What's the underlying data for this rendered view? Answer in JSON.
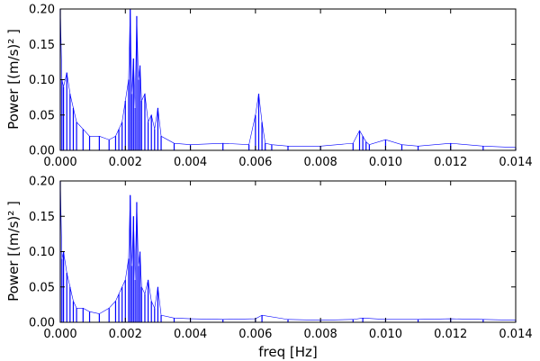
{
  "chart_data": [
    {
      "type": "line",
      "xlabel": "",
      "ylabel": "Power [(m/s)² ]",
      "xlim": [
        0.0,
        0.014
      ],
      "ylim": [
        0.0,
        0.2
      ],
      "xticks": [
        "0.000",
        "0.002",
        "0.004",
        "0.006",
        "0.008",
        "0.010",
        "0.012",
        "0.014"
      ],
      "yticks": [
        "0.00",
        "0.05",
        "0.10",
        "0.15",
        "0.20"
      ],
      "series": [
        {
          "color": "#0000ff",
          "x": [
            0.0,
            5e-05,
            0.0001,
            0.0002,
            0.0003,
            0.0004,
            0.0005,
            0.0007,
            0.0009,
            0.0012,
            0.0015,
            0.0017,
            0.0018,
            0.0019,
            0.002,
            0.0021,
            0.00215,
            0.0022,
            0.00225,
            0.0023,
            0.00235,
            0.0024,
            0.00245,
            0.0025,
            0.0026,
            0.0027,
            0.0028,
            0.0029,
            0.003,
            0.0031,
            0.0035,
            0.004,
            0.005,
            0.0058,
            0.006,
            0.0061,
            0.0062,
            0.0063,
            0.0065,
            0.007,
            0.008,
            0.009,
            0.0092,
            0.0093,
            0.0094,
            0.0095,
            0.01,
            0.0105,
            0.011,
            0.012,
            0.013,
            0.014
          ],
          "y": [
            0.2,
            0.1,
            0.09,
            0.11,
            0.08,
            0.06,
            0.04,
            0.03,
            0.02,
            0.02,
            0.015,
            0.02,
            0.03,
            0.04,
            0.07,
            0.1,
            0.2,
            0.08,
            0.13,
            0.06,
            0.19,
            0.1,
            0.12,
            0.07,
            0.08,
            0.04,
            0.05,
            0.03,
            0.06,
            0.02,
            0.01,
            0.008,
            0.01,
            0.008,
            0.05,
            0.08,
            0.04,
            0.01,
            0.008,
            0.006,
            0.006,
            0.01,
            0.028,
            0.02,
            0.012,
            0.008,
            0.015,
            0.008,
            0.006,
            0.01,
            0.006,
            0.004
          ]
        }
      ]
    },
    {
      "type": "line",
      "xlabel": "freq [Hz]",
      "ylabel": "Power [(m/s)² ]",
      "xlim": [
        0.0,
        0.014
      ],
      "ylim": [
        0.0,
        0.2
      ],
      "xticks": [
        "0.000",
        "0.002",
        "0.004",
        "0.006",
        "0.008",
        "0.010",
        "0.012",
        "0.014"
      ],
      "yticks": [
        "0.00",
        "0.05",
        "0.10",
        "0.15",
        "0.20"
      ],
      "series": [
        {
          "color": "#0000ff",
          "x": [
            0.0,
            5e-05,
            0.0001,
            0.0002,
            0.0003,
            0.0004,
            0.0005,
            0.0007,
            0.0009,
            0.0012,
            0.0015,
            0.0017,
            0.0018,
            0.0019,
            0.002,
            0.0021,
            0.00215,
            0.0022,
            0.00225,
            0.0023,
            0.00235,
            0.0024,
            0.00245,
            0.0025,
            0.0026,
            0.0027,
            0.0028,
            0.0029,
            0.003,
            0.0031,
            0.0035,
            0.004,
            0.005,
            0.006,
            0.0062,
            0.007,
            0.008,
            0.009,
            0.0093,
            0.01,
            0.011,
            0.012,
            0.013,
            0.014
          ],
          "y": [
            0.2,
            0.09,
            0.1,
            0.07,
            0.05,
            0.03,
            0.02,
            0.02,
            0.015,
            0.012,
            0.02,
            0.03,
            0.04,
            0.05,
            0.06,
            0.09,
            0.18,
            0.08,
            0.15,
            0.06,
            0.17,
            0.08,
            0.1,
            0.05,
            0.04,
            0.06,
            0.03,
            0.02,
            0.05,
            0.01,
            0.006,
            0.005,
            0.004,
            0.005,
            0.01,
            0.004,
            0.003,
            0.004,
            0.006,
            0.004,
            0.004,
            0.005,
            0.004,
            0.003
          ]
        }
      ]
    }
  ]
}
